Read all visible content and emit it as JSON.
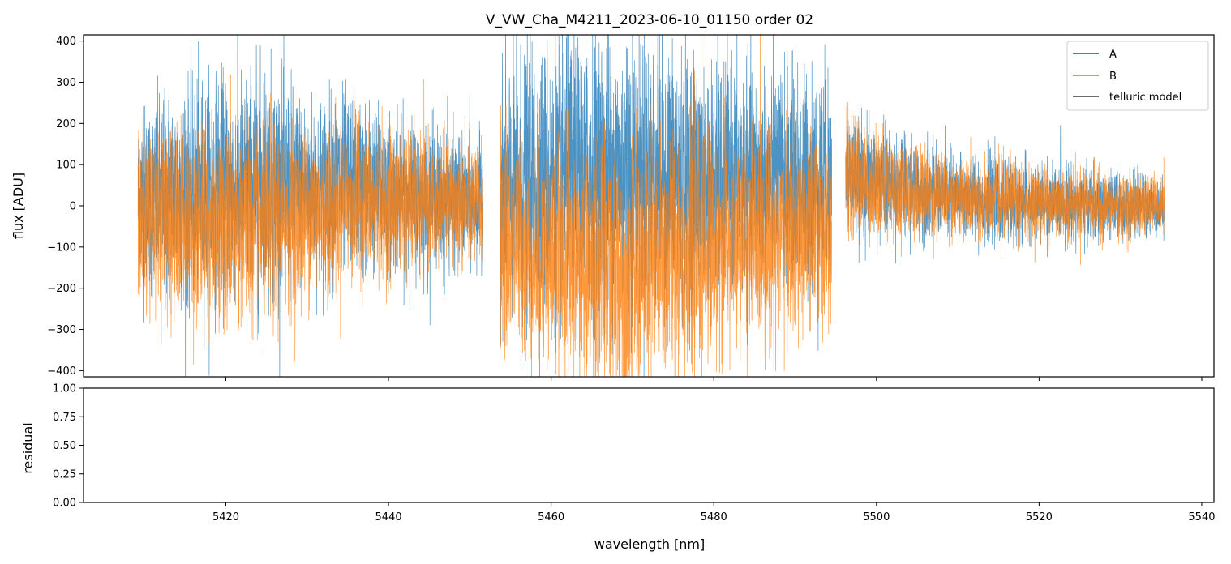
{
  "chart_data": [
    {
      "type": "line",
      "title": "V_VW_Cha_M4211_2023-06-10_01150  order 02",
      "xlabel": "",
      "ylabel": "flux [ADU]",
      "xlim": [
        5402.5,
        5541.5
      ],
      "ylim": [
        -415,
        415
      ],
      "xticks": [
        5420,
        5440,
        5460,
        5480,
        5500,
        5520,
        5540
      ],
      "yticks": [
        -400,
        -300,
        -200,
        -100,
        0,
        100,
        200,
        300,
        400
      ],
      "ytick_labels": [
        "−400",
        "−300",
        "−200",
        "−100",
        "0",
        "100",
        "200",
        "300",
        "400"
      ],
      "legend_position": "top-right",
      "segments": [
        [
          5409.2,
          5451.6
        ],
        [
          5453.7,
          5494.5
        ],
        [
          5496.2,
          5535.4
        ]
      ],
      "series": [
        {
          "name": "A",
          "color": "#1f77b4",
          "description": "noisy spectrum",
          "envelope": {
            "x": [
              5409.2,
              5415,
              5420,
              5425,
              5430,
              5435,
              5440,
              5445,
              5451.6,
              5453.7,
              5460,
              5465,
              5470,
              5475,
              5480,
              5485,
              5490,
              5494.5,
              5496.2,
              5500,
              5505,
              5510,
              5515,
              5520,
              5525,
              5530,
              5535.4
            ],
            "center": [
              10,
              30,
              40,
              50,
              40,
              60,
              30,
              20,
              10,
              40,
              60,
              80,
              90,
              70,
              60,
              60,
              60,
              50,
              80,
              60,
              40,
              20,
              10,
              10,
              5,
              0,
              0
            ],
            "amplitude": [
              200,
              240,
              240,
              260,
              200,
              190,
              170,
              150,
              130,
              260,
              300,
              300,
              320,
              280,
              260,
              240,
              240,
              240,
              130,
              120,
              100,
              90,
              90,
              80,
              80,
              70,
              60
            ]
          }
        },
        {
          "name": "B",
          "color": "#ff7f0e",
          "description": "noisy spectrum",
          "envelope": {
            "x": [
              5409.2,
              5415,
              5420,
              5425,
              5430,
              5435,
              5440,
              5445,
              5451.6,
              5453.7,
              5460,
              5465,
              5470,
              5475,
              5480,
              5485,
              5490,
              5494.5,
              5496.2,
              5500,
              5505,
              5510,
              5515,
              5520,
              5525,
              5530,
              5535.4
            ],
            "center": [
              -20,
              -40,
              -50,
              -40,
              -20,
              0,
              10,
              10,
              0,
              -70,
              -120,
              -150,
              -160,
              -120,
              -100,
              -80,
              -70,
              -60,
              70,
              50,
              30,
              20,
              10,
              10,
              5,
              0,
              0
            ],
            "amplitude": [
              200,
              210,
              220,
              220,
              180,
              170,
              160,
              150,
              130,
              240,
              260,
              280,
              290,
              260,
              240,
              220,
              210,
              200,
              130,
              120,
              100,
              90,
              90,
              80,
              80,
              70,
              60
            ]
          }
        },
        {
          "name": "telluric model",
          "color": "#555555",
          "description": "not drawn",
          "envelope": null
        }
      ]
    },
    {
      "type": "line",
      "title": "",
      "xlabel": "wavelength [nm]",
      "ylabel": "residual",
      "xlim": [
        5402.5,
        5541.5
      ],
      "ylim": [
        0,
        1
      ],
      "xticks": [
        5420,
        5440,
        5460,
        5480,
        5500,
        5520,
        5540
      ],
      "yticks": [
        0,
        0.25,
        0.5,
        0.75,
        1.0
      ],
      "ytick_labels": [
        "0.00",
        "0.25",
        "0.50",
        "0.75",
        "1.00"
      ],
      "series": []
    }
  ]
}
